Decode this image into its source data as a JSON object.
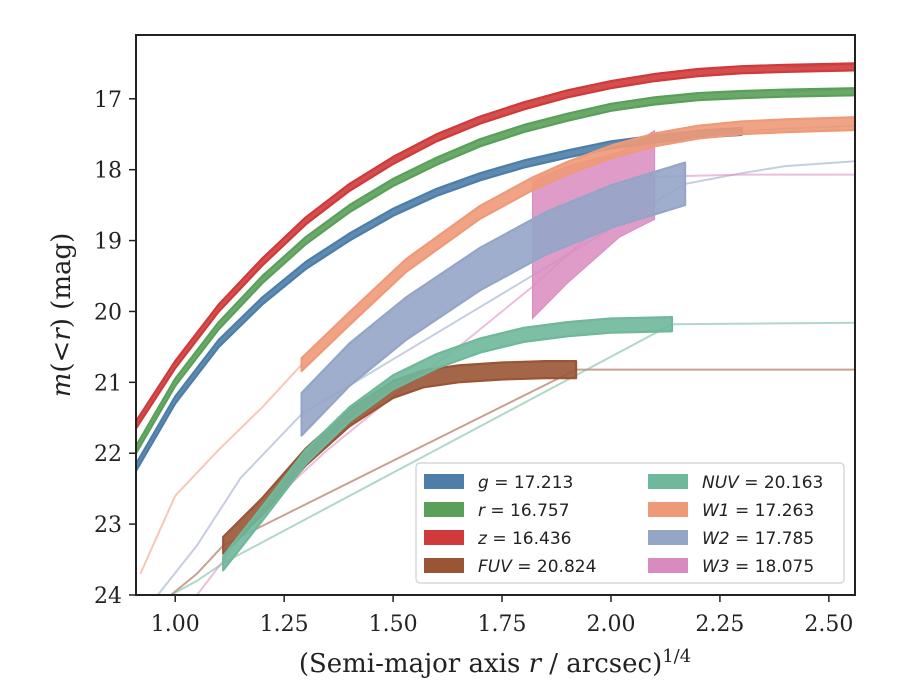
{
  "chart_data": {
    "type": "line",
    "title": "",
    "xlabel_main": "(Semi-major axis ",
    "xlabel_r": "r",
    "xlabel_unit": " / arcsec)",
    "xlabel_sup": "1/4",
    "ylabel_m": "m",
    "ylabel_open": "(",
    "ylabel_lt": "<",
    "ylabel_r": "r",
    "ylabel_close": ")",
    "ylabel_unit": " (mag)",
    "xlim": [
      0.91,
      2.56
    ],
    "ylim": [
      24.0,
      16.1
    ],
    "y_inverted": true,
    "xticks": [
      "1.00",
      "1.25",
      "1.50",
      "1.75",
      "2.00",
      "2.25",
      "2.50"
    ],
    "yticks": [
      "17",
      "18",
      "19",
      "20",
      "21",
      "22",
      "23",
      "24"
    ],
    "grid": false,
    "legend_position": "lower-right",
    "series": [
      {
        "id": "g",
        "var": "g",
        "italic": false,
        "value": "17.213",
        "color": "#4c7ea8",
        "band": 0.05,
        "x": [
          0.91,
          1.0,
          1.1,
          1.2,
          1.3,
          1.4,
          1.5,
          1.6,
          1.7,
          1.8,
          1.9,
          2.0,
          2.1,
          2.2,
          2.3
        ],
        "y": [
          22.2,
          21.25,
          20.45,
          19.85,
          19.35,
          18.95,
          18.6,
          18.32,
          18.1,
          17.92,
          17.78,
          17.65,
          17.57,
          17.5,
          17.46
        ],
        "tail_x": [
          2.3,
          2.4,
          2.56
        ],
        "tail_y": [
          17.46,
          17.42,
          17.38
        ]
      },
      {
        "id": "r",
        "var": "r",
        "italic": false,
        "value": "16.757",
        "color": "#5aa05a",
        "band": 0.05,
        "x": [
          0.91,
          1.0,
          1.1,
          1.2,
          1.3,
          1.4,
          1.5,
          1.6,
          1.7,
          1.8,
          1.9,
          2.0,
          2.1,
          2.2,
          2.3,
          2.4,
          2.56
        ],
        "y": [
          21.95,
          21.0,
          20.2,
          19.55,
          19.0,
          18.55,
          18.18,
          17.88,
          17.62,
          17.42,
          17.26,
          17.12,
          17.03,
          16.97,
          16.94,
          16.92,
          16.9
        ],
        "tail_x": [
          2.4,
          2.56
        ],
        "tail_y": [
          16.9,
          16.86
        ]
      },
      {
        "id": "z",
        "var": "z",
        "italic": false,
        "value": "16.436",
        "color": "#cf3b3b",
        "band": 0.05,
        "x": [
          0.91,
          1.0,
          1.1,
          1.2,
          1.3,
          1.4,
          1.5,
          1.6,
          1.7,
          1.8,
          1.9,
          2.0,
          2.1,
          2.2,
          2.3,
          2.4,
          2.56
        ],
        "y": [
          21.6,
          20.75,
          19.95,
          19.3,
          18.72,
          18.25,
          17.87,
          17.55,
          17.3,
          17.1,
          16.93,
          16.8,
          16.7,
          16.63,
          16.59,
          16.57,
          16.55
        ],
        "tail_x": [
          2.4,
          2.56
        ],
        "tail_y": [
          16.55,
          16.51
        ]
      },
      {
        "id": "FUV",
        "var": "FUV",
        "italic": true,
        "value": "20.824",
        "color": "#9a5535",
        "band": 0.12,
        "x": [
          1.11,
          1.2,
          1.3,
          1.4,
          1.5,
          1.57,
          1.65,
          1.75,
          1.85,
          1.92
        ],
        "y": [
          23.3,
          22.75,
          22.05,
          21.5,
          21.1,
          20.95,
          20.88,
          20.84,
          20.82,
          20.82
        ],
        "tail_x": [
          0.99,
          1.05,
          1.11,
          1.92,
          2.56
        ],
        "tail_y": [
          24.0,
          23.7,
          23.3,
          20.82,
          20.82
        ]
      },
      {
        "id": "NUV",
        "var": "NUV",
        "italic": true,
        "value": "20.163",
        "color": "#6fb89b",
        "band": 0.1,
        "x": [
          1.11,
          1.2,
          1.3,
          1.4,
          1.5,
          1.6,
          1.7,
          1.8,
          1.9,
          2.0,
          2.14
        ],
        "y": [
          23.55,
          22.85,
          22.05,
          21.45,
          21.0,
          20.7,
          20.48,
          20.33,
          20.25,
          20.2,
          20.18
        ],
        "tail_x": [
          0.99,
          1.05,
          1.11,
          2.14,
          2.56
        ],
        "tail_y": [
          24.0,
          23.8,
          23.55,
          20.18,
          20.16
        ]
      },
      {
        "id": "W1",
        "var": "W1",
        "italic": true,
        "value": "17.263",
        "color": "#ee9a78",
        "band": 0.09,
        "x": [
          1.29,
          1.4,
          1.53,
          1.7,
          1.82,
          1.9,
          2.0,
          2.1,
          2.2,
          2.3,
          2.4,
          2.56
        ],
        "y": [
          20.75,
          20.1,
          19.35,
          18.6,
          18.2,
          17.98,
          17.75,
          17.58,
          17.47,
          17.41,
          17.38,
          17.35
        ],
        "tail_x": [
          0.92,
          1.0,
          1.1,
          1.2,
          1.29
        ],
        "tail_y": [
          23.7,
          22.6,
          21.95,
          21.35,
          20.75
        ]
      },
      {
        "id": "W2",
        "var": "W2",
        "italic": true,
        "value": "17.785",
        "color": "#95a5c6",
        "band": 0.3,
        "x": [
          1.29,
          1.4,
          1.53,
          1.7,
          1.85,
          2.0,
          2.17
        ],
        "y": [
          21.45,
          20.75,
          20.1,
          19.4,
          18.9,
          18.52,
          18.2
        ],
        "tail_x": [
          0.96,
          1.05,
          1.15,
          1.29,
          2.17,
          2.3,
          2.4,
          2.56
        ],
        "tail_y": [
          24.0,
          23.3,
          22.35,
          21.45,
          18.2,
          18.05,
          17.95,
          17.88
        ]
      },
      {
        "id": "W3",
        "var": "W3",
        "italic": true,
        "value": "18.075",
        "color": "#d98bc0",
        "band": 0,
        "band_x": [
          1.82,
          1.9,
          2.02,
          2.1,
          2.1,
          2.02,
          1.9,
          1.82
        ],
        "band_y": [
          20.1,
          19.6,
          18.95,
          18.7,
          17.45,
          17.75,
          17.95,
          18.15
        ],
        "x": [],
        "y": [],
        "tail_x": [
          1.05,
          1.2,
          1.35,
          1.5,
          1.65,
          1.82,
          2.1,
          2.3,
          2.56
        ],
        "tail_y": [
          24.0,
          22.8,
          21.95,
          21.2,
          20.5,
          19.65,
          18.1,
          18.07,
          18.07
        ]
      }
    ]
  }
}
